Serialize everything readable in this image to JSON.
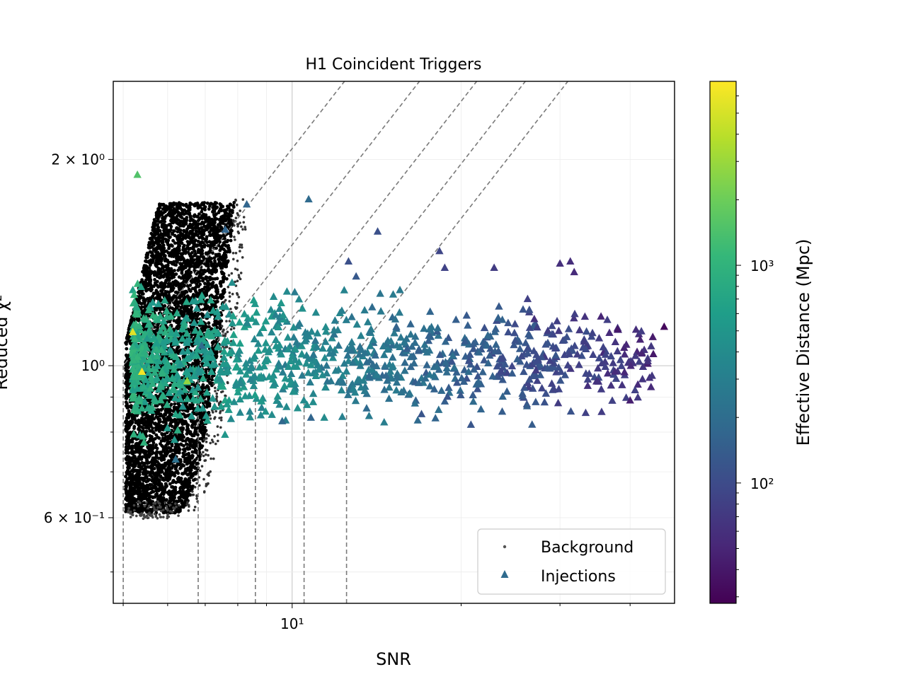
{
  "chart_data": {
    "type": "scatter",
    "title": "H1 Coincident Triggers",
    "xlabel": "SNR",
    "ylabel": "Reduced χ²",
    "xscale": "log",
    "yscale": "log",
    "xlim": [
      4.8,
      48
    ],
    "ylim": [
      0.45,
      2.6
    ],
    "x_ticks": [
      {
        "value": 10,
        "label": "10¹"
      }
    ],
    "y_ticks": [
      {
        "value": 0.6,
        "label": "6 × 10⁻¹"
      },
      {
        "value": 1.0,
        "label": "10⁰"
      },
      {
        "value": 2.0,
        "label": "2 × 10⁰"
      }
    ],
    "grid": true,
    "legend": {
      "location": "lower-right",
      "entries": [
        {
          "label": "Background",
          "marker": "dot",
          "color": "#555555"
        },
        {
          "label": "Injections",
          "marker": "triangle",
          "color": "#2f6b8e"
        }
      ]
    },
    "colorbar": {
      "label": "Effective Distance (Mpc)",
      "scale": "log",
      "range": [
        28,
        7000
      ],
      "ticks": [
        {
          "value": 100,
          "label": "10²"
        },
        {
          "value": 1000,
          "label": "10³"
        }
      ],
      "colormap": [
        "#440154",
        "#482878",
        "#3e4989",
        "#31688e",
        "#26828e",
        "#1f9e89",
        "#35b779",
        "#6ece58",
        "#b5de2b",
        "#fde725"
      ]
    },
    "background_region": {
      "snr_min": 5.05,
      "snr_max_near_chi1": 7.7,
      "chi_min": 0.61,
      "chi_max": 1.73
    },
    "threshold_curves": [
      {
        "snr_start": 5.0,
        "snr_vertical_from_chi": 1.0
      },
      {
        "snr_start": 6.8,
        "snr_vertical_from_chi": 1.0
      },
      {
        "snr_start": 8.6,
        "snr_vertical_from_chi": 1.0
      },
      {
        "snr_start": 10.5,
        "snr_vertical_from_chi": 1.0
      },
      {
        "snr_start": 12.5,
        "snr_vertical_from_chi": 1.0
      }
    ],
    "series": [
      {
        "name": "Injections",
        "marker": "triangle",
        "points": [
          {
            "x": 5.3,
            "y": 1.9,
            "d": 1500
          },
          {
            "x": 5.2,
            "y": 1.12,
            "d": 5500
          },
          {
            "x": 5.4,
            "y": 0.98,
            "d": 6500
          },
          {
            "x": 6.5,
            "y": 0.95,
            "d": 2800
          },
          {
            "x": 7.6,
            "y": 1.58,
            "d": 170
          },
          {
            "x": 8.3,
            "y": 1.72,
            "d": 170
          },
          {
            "x": 10.7,
            "y": 1.75,
            "d": 190
          },
          {
            "x": 14.2,
            "y": 1.57,
            "d": 110
          },
          {
            "x": 12.6,
            "y": 1.42,
            "d": 110
          },
          {
            "x": 18.3,
            "y": 1.47,
            "d": 90
          },
          {
            "x": 18.7,
            "y": 1.39,
            "d": 85
          },
          {
            "x": 22.9,
            "y": 1.39,
            "d": 75
          },
          {
            "x": 30.0,
            "y": 1.41,
            "d": 60
          },
          {
            "x": 31.3,
            "y": 1.42,
            "d": 58
          },
          {
            "x": 31.8,
            "y": 1.37,
            "d": 55
          },
          {
            "x": 46.0,
            "y": 1.14,
            "d": 32
          },
          {
            "x": 44.0,
            "y": 1.04,
            "d": 40
          },
          {
            "x": 40.0,
            "y": 0.89,
            "d": 45
          },
          {
            "x": 38.0,
            "y": 1.13,
            "d": 40
          },
          {
            "x": 35.5,
            "y": 1.18,
            "d": 50
          },
          {
            "x": 27.0,
            "y": 1.17,
            "d": 60
          },
          {
            "x": 17.0,
            "y": 0.85,
            "d": 120
          },
          {
            "x": 13.0,
            "y": 1.35,
            "d": 130
          },
          {
            "x": 6.9,
            "y": 1.07,
            "d": 200
          },
          {
            "x": 9.6,
            "y": 0.83,
            "d": 180
          },
          {
            "x": 10.8,
            "y": 0.84,
            "d": 170
          },
          {
            "x": 6.2,
            "y": 0.73,
            "d": 220
          }
        ]
      }
    ]
  }
}
